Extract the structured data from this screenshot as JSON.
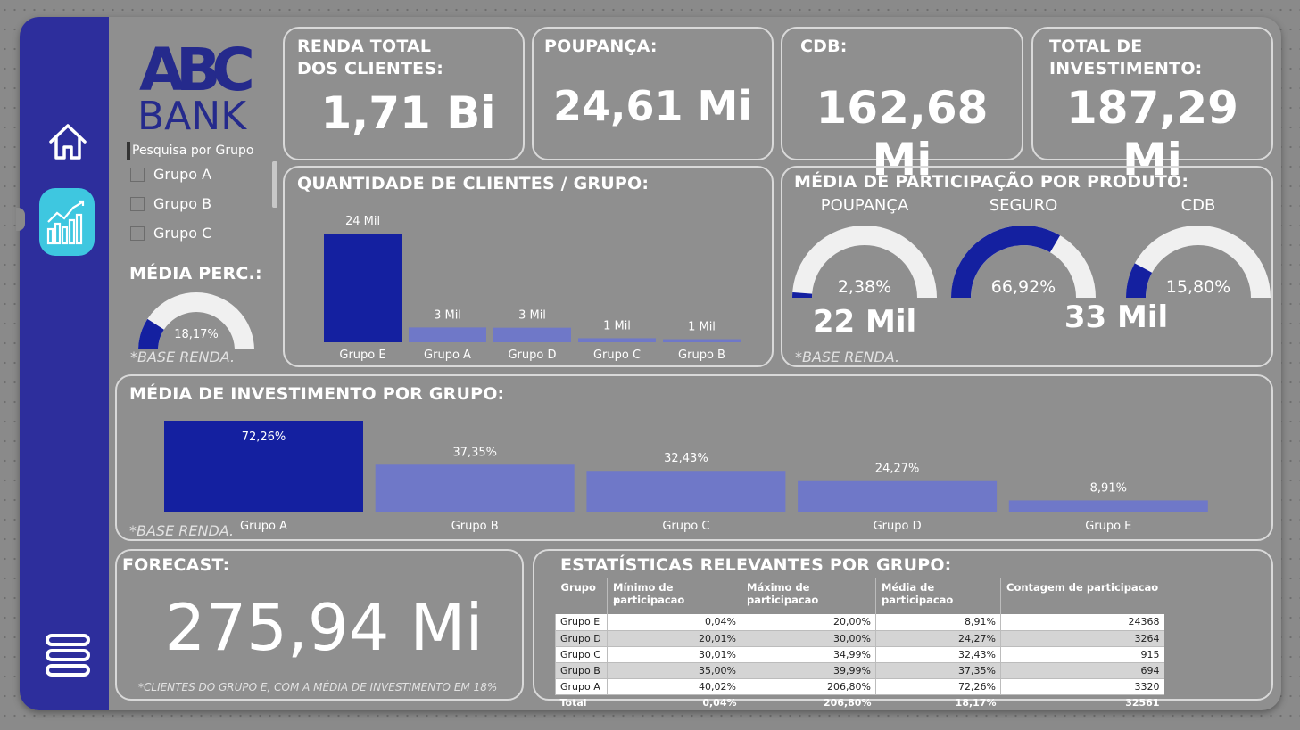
{
  "logo": {
    "letters": "ABC",
    "word": "BANK"
  },
  "nav": {
    "home_icon": "home-icon",
    "report_icon": "line-chart-icon",
    "menu_icon": "menu-icon"
  },
  "slicer": {
    "header": "Pesquisa por Grupo",
    "items": [
      {
        "label": "Grupo A",
        "checked": false
      },
      {
        "label": "Grupo B",
        "checked": false
      },
      {
        "label": "Grupo C",
        "checked": false
      }
    ]
  },
  "media_perc": {
    "title": "MÉDIA PERC.:",
    "value_label": "18,17%",
    "value": 18.17,
    "note": "*BASE RENDA."
  },
  "kpis": {
    "renda": {
      "title": "RENDA TOTAL DOS CLIENTES:",
      "title_line1": "RENDA TOTAL",
      "title_line2": "DOS CLIENTES:",
      "value": "1,71 Bi"
    },
    "poupanca": {
      "title": "POUPANÇA:",
      "value": "24,61 Mi"
    },
    "cdb": {
      "title": "CDB:",
      "value": "162,68 Mi"
    },
    "total": {
      "title": "TOTAL DE INVESTIMENTO:",
      "title_line1": "TOTAL DE",
      "title_line2": "INVESTIMENTO:",
      "value": "187,29 Mi"
    }
  },
  "clientes_chart_title": "QUANTIDADE DE CLIENTES / GRUPO:",
  "participacao": {
    "title": "MÉDIA DE PARTICIPAÇÃO POR PRODUTO:",
    "gauges": [
      {
        "label": "POUPANÇA",
        "value": 2.38,
        "value_label": "2,38%"
      },
      {
        "label": "SEGURO",
        "value": 66.92,
        "value_label": "66,92%"
      },
      {
        "label": "CDB",
        "value": 15.8,
        "value_label": "15,80%"
      }
    ],
    "count_left": "22 Mil",
    "count_right": "33 Mil",
    "note": "*BASE RENDA."
  },
  "investimento_chart_title": "MÉDIA DE INVESTIMENTO POR GRUPO:",
  "investimento_note": "*BASE RENDA.",
  "forecast": {
    "title": "FORECAST:",
    "value": "275,94 Mi",
    "note": "*CLIENTES DO GRUPO E, COM A MÉDIA DE INVESTIMENTO EM 18%"
  },
  "stats": {
    "title": "ESTATÍSTICAS RELEVANTES POR GRUPO:",
    "columns": [
      "Grupo",
      "Mínimo de participacao",
      "Máximo de participacao",
      "Média de participacao",
      "Contagem de participacao"
    ],
    "rows": [
      [
        "Grupo E",
        "0,04%",
        "20,00%",
        "8,91%",
        "24368"
      ],
      [
        "Grupo D",
        "20,01%",
        "30,00%",
        "24,27%",
        "3264"
      ],
      [
        "Grupo C",
        "30,01%",
        "34,99%",
        "32,43%",
        "915"
      ],
      [
        "Grupo B",
        "35,00%",
        "39,99%",
        "37,35%",
        "694"
      ],
      [
        "Grupo A",
        "40,02%",
        "206,80%",
        "72,26%",
        "3320"
      ]
    ],
    "total": [
      "Total",
      "0,04%",
      "206,80%",
      "18,17%",
      "32561"
    ]
  },
  "colors": {
    "sidebar": "#2d2e9c",
    "bar_highlight": "#1420a0",
    "bar_normal": "#6f78c8",
    "gauge_track": "#f0f0f0",
    "accent": "#3ec7e0"
  },
  "chart_data": [
    {
      "type": "bar",
      "title": "QUANTIDADE DE CLIENTES / GRUPO:",
      "categories": [
        "Grupo E",
        "Grupo A",
        "Grupo D",
        "Grupo C",
        "Grupo B"
      ],
      "values": [
        24368,
        3320,
        3264,
        915,
        694
      ],
      "data_labels": [
        "24 Mil",
        "3 Mil",
        "3 Mil",
        "1 Mil",
        "1 Mil"
      ],
      "highlight": "Grupo E"
    },
    {
      "type": "bar",
      "title": "MÉDIA DE INVESTIMENTO POR GRUPO:",
      "categories": [
        "Grupo A",
        "Grupo B",
        "Grupo C",
        "Grupo D",
        "Grupo E"
      ],
      "values": [
        72.26,
        37.35,
        32.43,
        24.27,
        8.91
      ],
      "data_labels": [
        "72,26%",
        "37,35%",
        "32,43%",
        "24,27%",
        "8,91%"
      ],
      "highlight": "Grupo A"
    }
  ]
}
